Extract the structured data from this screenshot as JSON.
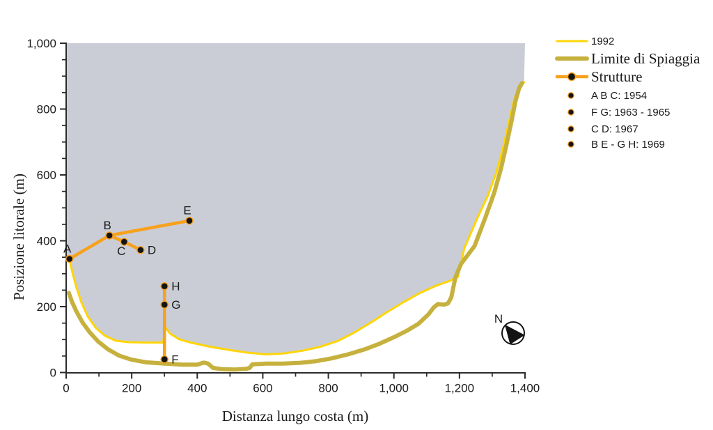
{
  "chart_data": {
    "type": "line",
    "title": "",
    "xlabel": "Distanza lungo costa (m)",
    "ylabel": "Posizione litorale (m)",
    "xlim": [
      0,
      1400
    ],
    "ylim": [
      0,
      1000
    ],
    "x_major_ticks": [
      0,
      200,
      400,
      600,
      800,
      1000,
      1200,
      1400
    ],
    "x_tick_labels": [
      "0",
      "200",
      "400",
      "600",
      "800",
      "1,000",
      "1,200",
      "1,400"
    ],
    "x_minor_step": 100,
    "y_major_ticks": [
      0,
      200,
      400,
      600,
      800,
      1000
    ],
    "y_tick_labels": [
      "0",
      "200",
      "400",
      "600",
      "800",
      "1,000"
    ],
    "y_minor_step": 50,
    "grid": false,
    "area_fill": {
      "name": "spiaggia-area",
      "color": "#CACDD6",
      "follows_series": "1992",
      "pre": [
        [
          0,
          348
        ]
      ],
      "post": [
        [
          1400,
          1000
        ],
        [
          0,
          1000
        ]
      ]
    },
    "series": [
      {
        "name": "1992",
        "color": "#FFD506",
        "width": 3,
        "points": [
          [
            10,
            342
          ],
          [
            20,
            300
          ],
          [
            32,
            256
          ],
          [
            47,
            212
          ],
          [
            66,
            170
          ],
          [
            90,
            136
          ],
          [
            118,
            112
          ],
          [
            150,
            97
          ],
          [
            190,
            92
          ],
          [
            245,
            91
          ],
          [
            296,
            91
          ],
          [
            303,
            137
          ],
          [
            317,
            118
          ],
          [
            345,
            101
          ],
          [
            380,
            91
          ],
          [
            440,
            78
          ],
          [
            500,
            68
          ],
          [
            555,
            60
          ],
          [
            610,
            55
          ],
          [
            665,
            58
          ],
          [
            720,
            66
          ],
          [
            775,
            78
          ],
          [
            830,
            96
          ],
          [
            880,
            122
          ],
          [
            930,
            152
          ],
          [
            980,
            184
          ],
          [
            1030,
            214
          ],
          [
            1080,
            242
          ],
          [
            1130,
            264
          ],
          [
            1170,
            278
          ],
          [
            1195,
            290
          ],
          [
            1215,
            378
          ],
          [
            1256,
            472
          ],
          [
            1288,
            540
          ],
          [
            1313,
            608
          ],
          [
            1334,
            686
          ],
          [
            1350,
            756
          ],
          [
            1366,
            826
          ],
          [
            1383,
            872
          ],
          [
            1397,
            881
          ]
        ]
      },
      {
        "name": "Limite di Spiaggia",
        "color": "#C6B13E",
        "width": 6,
        "points": [
          [
            8,
            242
          ],
          [
            18,
            214
          ],
          [
            32,
            184
          ],
          [
            50,
            152
          ],
          [
            72,
            122
          ],
          [
            98,
            94
          ],
          [
            128,
            70
          ],
          [
            162,
            51
          ],
          [
            200,
            39
          ],
          [
            245,
            31
          ],
          [
            300,
            27
          ],
          [
            355,
            24
          ],
          [
            400,
            24
          ],
          [
            420,
            30
          ],
          [
            433,
            27
          ],
          [
            448,
            14
          ],
          [
            478,
            10
          ],
          [
            515,
            9
          ],
          [
            548,
            11
          ],
          [
            560,
            14
          ],
          [
            568,
            25
          ],
          [
            610,
            27
          ],
          [
            660,
            27
          ],
          [
            710,
            29
          ],
          [
            760,
            34
          ],
          [
            810,
            43
          ],
          [
            860,
            55
          ],
          [
            910,
            70
          ],
          [
            955,
            87
          ],
          [
            1000,
            107
          ],
          [
            1040,
            127
          ],
          [
            1075,
            148
          ],
          [
            1105,
            176
          ],
          [
            1122,
            198
          ],
          [
            1135,
            208
          ],
          [
            1152,
            206
          ],
          [
            1165,
            210
          ],
          [
            1175,
            228
          ],
          [
            1182,
            262
          ],
          [
            1188,
            290
          ],
          [
            1205,
            330
          ],
          [
            1246,
            384
          ],
          [
            1278,
            468
          ],
          [
            1306,
            546
          ],
          [
            1327,
            620
          ],
          [
            1343,
            690
          ],
          [
            1359,
            764
          ],
          [
            1371,
            824
          ],
          [
            1382,
            863
          ],
          [
            1391,
            879
          ]
        ]
      }
    ],
    "structures": {
      "name": "Strutture",
      "color": "#F7A11D",
      "line_width": 4.5,
      "dot_color": "#141414",
      "points": [
        {
          "id": "A",
          "x": 10,
          "y": 345,
          "label_pos": "above"
        },
        {
          "id": "B",
          "x": 132,
          "y": 416,
          "label_pos": "above"
        },
        {
          "id": "C",
          "x": 177,
          "y": 397,
          "label_pos": "below"
        },
        {
          "id": "D",
          "x": 227,
          "y": 372,
          "label_pos": "right"
        },
        {
          "id": "E",
          "x": 376,
          "y": 461,
          "label_pos": "above"
        },
        {
          "id": "F",
          "x": 300,
          "y": 40,
          "label_pos": "right"
        },
        {
          "id": "G",
          "x": 300,
          "y": 206,
          "label_pos": "right"
        },
        {
          "id": "H",
          "x": 300,
          "y": 262,
          "label_pos": "right"
        }
      ],
      "polylines": [
        [
          "A",
          "B",
          "E"
        ],
        [
          "B",
          "C",
          "D"
        ],
        [
          "F",
          "G",
          "H"
        ]
      ]
    }
  },
  "legend": {
    "items": [
      {
        "type": "line",
        "label": "1992",
        "color": "#FFD506",
        "width": 3,
        "serif": false
      },
      {
        "type": "line",
        "label": "Limite di Spiaggia",
        "color": "#C6B13E",
        "width": 6,
        "serif": true
      },
      {
        "type": "line-dot",
        "label": "Strutture",
        "color": "#F7A11D",
        "width": 4.5,
        "serif": true
      },
      {
        "type": "dot",
        "label": "A B C: 1954",
        "color": "#141414",
        "ring": "#F7A11D",
        "serif": false
      },
      {
        "type": "dot",
        "label": "F G: 1963 - 1965",
        "color": "#141414",
        "ring": "#F7A11D",
        "serif": false
      },
      {
        "type": "dot",
        "label": "C D: 1967",
        "color": "#141414",
        "ring": "#F7A11D",
        "serif": false
      },
      {
        "type": "dot",
        "label": "B E - G H: 1969",
        "color": "#141414",
        "ring": "#F7A11D",
        "serif": false
      }
    ]
  },
  "compass": {
    "label": "N"
  }
}
